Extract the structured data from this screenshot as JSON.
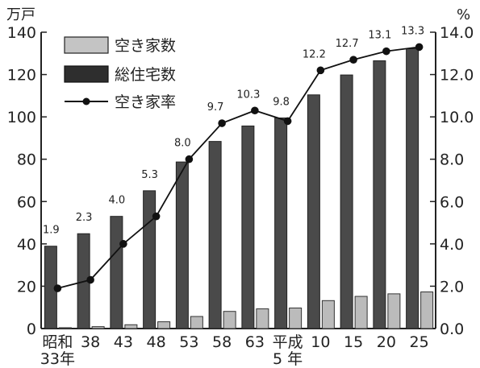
{
  "chart_data": {
    "type": "bar",
    "left_unit": "万戸",
    "right_unit": "%",
    "categories": [
      [
        "昭和",
        "33年"
      ],
      [
        "38"
      ],
      [
        "43"
      ],
      [
        "48"
      ],
      [
        "53"
      ],
      [
        "58"
      ],
      [
        "63"
      ],
      [
        "平成",
        "5 年"
      ],
      [
        "10"
      ],
      [
        "15"
      ],
      [
        "20"
      ],
      [
        "25"
      ]
    ],
    "y_left": {
      "min": 0,
      "max": 140,
      "ticks": [
        0,
        20,
        40,
        60,
        80,
        100,
        120,
        140
      ]
    },
    "y_right": {
      "min": 0,
      "max": 14,
      "ticks": [
        "0.0",
        "2.0",
        "4.0",
        "6.0",
        "8.0",
        "10.0",
        "12.0",
        "14.0"
      ]
    },
    "series": [
      {
        "name": "空き家数",
        "type": "bar",
        "axis": "left",
        "color": "#bbbbbb",
        "values": [
          0.4,
          0.9,
          1.8,
          3.2,
          5.7,
          8.1,
          9.3,
          9.7,
          13.2,
          15.2,
          16.4,
          17.3
        ]
      },
      {
        "name": "総住宅数",
        "type": "bar",
        "axis": "left",
        "color": "#4a4a4a",
        "values": [
          38.9,
          44.8,
          53.0,
          65.1,
          78.7,
          88.4,
          95.7,
          99.5,
          110.4,
          119.8,
          126.5,
          132.2
        ]
      },
      {
        "name": "空き家率",
        "type": "line",
        "axis": "right",
        "color": "#111111",
        "values": [
          1.9,
          2.3,
          4.0,
          5.3,
          8.0,
          9.7,
          10.3,
          9.8,
          12.2,
          12.7,
          13.1,
          13.3
        ],
        "labels": [
          "1.9",
          "2.3",
          "4.0",
          "5.3",
          "8.0",
          "9.7",
          "10.3",
          "9.8",
          "12.2",
          "12.7",
          "13.1",
          "13.3"
        ]
      }
    ],
    "legend": {
      "placement": "top-left"
    }
  }
}
